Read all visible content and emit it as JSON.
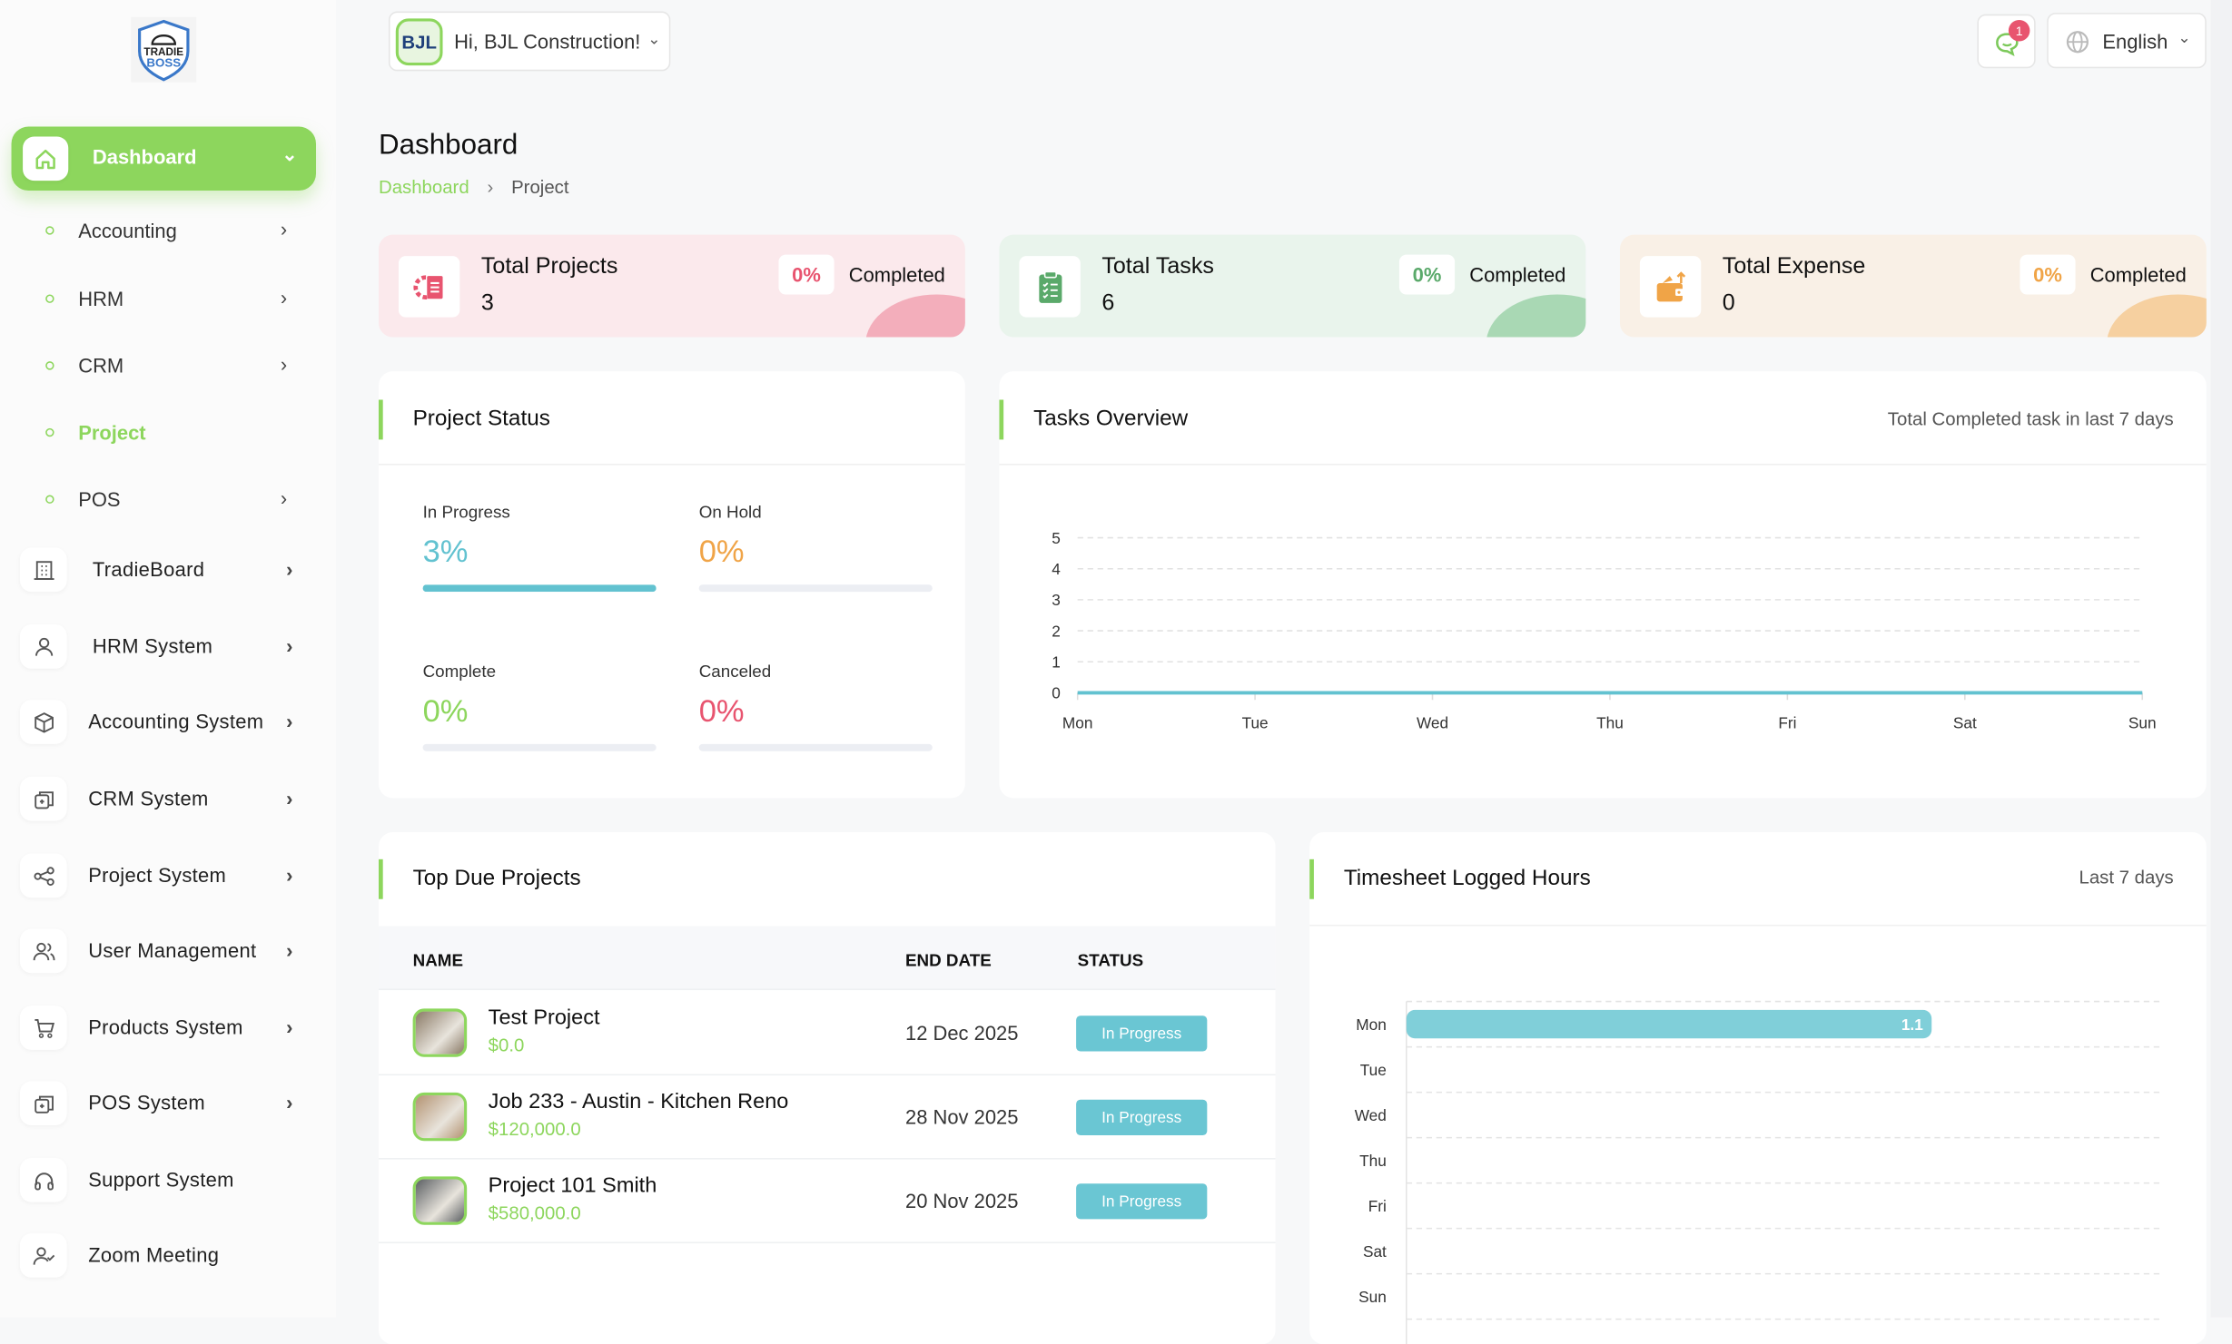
{
  "brand": {
    "logo_text": "TRADIE BOSS"
  },
  "header": {
    "user_greeting": "Hi, BJL Construction!",
    "user_logo_text": "BJL",
    "notification_count": "1",
    "language": "English"
  },
  "page": {
    "title": "Dashboard",
    "breadcrumb": [
      "Dashboard",
      "Project"
    ]
  },
  "sidebar": {
    "active": {
      "label": "Dashboard",
      "icon": "home-icon"
    },
    "sub_items": [
      {
        "label": "Accounting",
        "chevron": true
      },
      {
        "label": "HRM",
        "chevron": true
      },
      {
        "label": "CRM",
        "chevron": true
      },
      {
        "label": "Project",
        "chevron": false,
        "active": true
      },
      {
        "label": "POS",
        "chevron": true
      }
    ],
    "items": [
      {
        "label": "TradieBoard",
        "icon": "building-icon",
        "chevron": true
      },
      {
        "label": "HRM System",
        "icon": "user-icon",
        "chevron": true
      },
      {
        "label": "Accounting System",
        "icon": "box-icon",
        "chevron": true
      },
      {
        "label": "CRM System",
        "icon": "layers-icon",
        "chevron": true
      },
      {
        "label": "Project System",
        "icon": "share-icon",
        "chevron": true
      },
      {
        "label": "User Management",
        "icon": "users-icon",
        "chevron": true
      },
      {
        "label": "Products System",
        "icon": "cart-icon",
        "chevron": true
      },
      {
        "label": "POS System",
        "icon": "layers-icon",
        "chevron": true
      },
      {
        "label": "Support System",
        "icon": "headphones-icon",
        "chevron": false
      },
      {
        "label": "Zoom Meeting",
        "icon": "user-check-icon",
        "chevron": false
      }
    ]
  },
  "stats": [
    {
      "title": "Total Projects",
      "value": "3",
      "percent": "0%",
      "label": "Completed",
      "color": "#e8546f",
      "bg": "#fbe9ec",
      "blob": "#f3aebb",
      "icon": "project-gear-icon"
    },
    {
      "title": "Total Tasks",
      "value": "6",
      "percent": "0%",
      "label": "Completed",
      "color": "#5aa96a",
      "bg": "#e9f4ec",
      "blob": "#a9d8b4",
      "icon": "clipboard-icon"
    },
    {
      "title": "Total Expense",
      "value": "0",
      "percent": "0%",
      "label": "Completed",
      "color": "#f0a447",
      "bg": "#f9f0e6",
      "blob": "#f6d0a0",
      "icon": "wallet-icon"
    }
  ],
  "project_status": {
    "title": "Project Status",
    "items": [
      {
        "label": "In Progress",
        "value": "3%",
        "percent": 3,
        "color": "#62c2d0"
      },
      {
        "label": "On Hold",
        "value": "0%",
        "percent": 0,
        "color": "#f0a447"
      },
      {
        "label": "Complete",
        "value": "0%",
        "percent": 0,
        "color": "#8dd65d"
      },
      {
        "label": "Canceled",
        "value": "0%",
        "percent": 0,
        "color": "#e8546f"
      }
    ]
  },
  "chart_data": [
    {
      "type": "line",
      "title": "Tasks Overview",
      "subtitle": "Total Completed task in last 7 days",
      "categories": [
        "Mon",
        "Tue",
        "Wed",
        "Thu",
        "Fri",
        "Sat",
        "Sun"
      ],
      "values": [
        0,
        0,
        0,
        0,
        0,
        0,
        0
      ],
      "ylim": [
        0,
        5
      ],
      "yticks": [
        "0",
        "1",
        "2",
        "3",
        "4",
        "5"
      ],
      "grid": true,
      "color": "#62c2d0"
    },
    {
      "type": "bar",
      "orientation": "horizontal",
      "title": "Timesheet Logged Hours",
      "subtitle": "Last 7 days",
      "categories": [
        "Mon",
        "Tue",
        "Wed",
        "Thu",
        "Fri",
        "Sat",
        "Sun"
      ],
      "values": [
        1.1,
        0,
        0,
        0,
        0,
        0,
        0
      ],
      "data_labels": [
        "1.1",
        "",
        "",
        "",
        "",
        "",
        ""
      ],
      "grid": true,
      "color": "#80cfd9"
    }
  ],
  "top_due": {
    "title": "Top Due Projects",
    "columns": [
      "NAME",
      "END DATE",
      "STATUS"
    ],
    "rows": [
      {
        "name": "Test Project",
        "amount": "$0.0",
        "end_date": "12 Dec 2025",
        "status": "In Progress"
      },
      {
        "name": "Job 233 - Austin - Kitchen Reno",
        "amount": "$120,000.0",
        "end_date": "28 Nov 2025",
        "status": "In Progress"
      },
      {
        "name": "Project 101 Smith",
        "amount": "$580,000.0",
        "end_date": "20 Nov 2025",
        "status": "In Progress"
      }
    ]
  }
}
